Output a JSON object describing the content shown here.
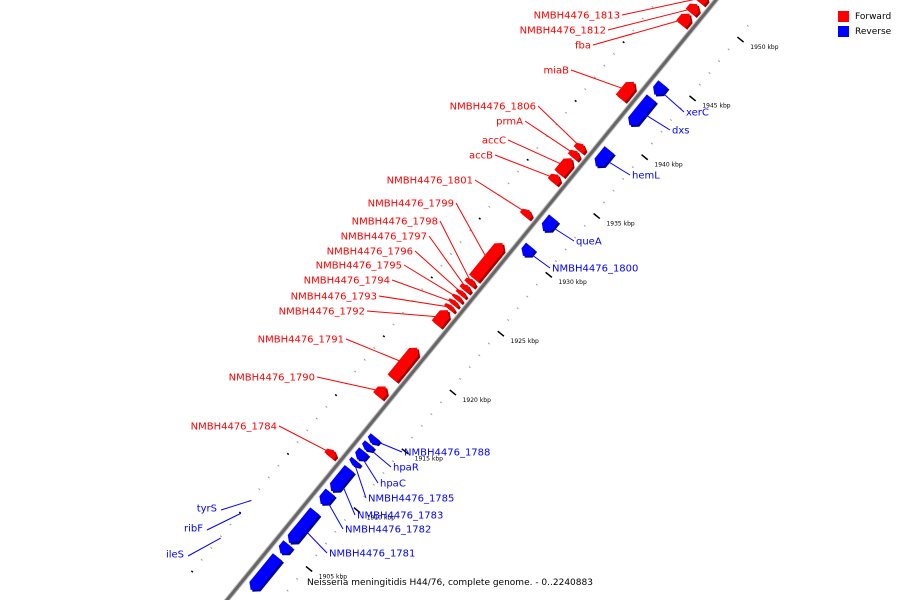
{
  "caption": "Neisseria meningitidis H44/76, complete genome. - 0..2240883",
  "legend": {
    "forward_label": "Forward",
    "reverse_label": "Reverse",
    "forward_color": "#ff0000",
    "reverse_color": "#0000ff"
  },
  "colors": {
    "forward": "#ff0000",
    "forward_dark": "#a00000",
    "reverse": "#0000ff",
    "reverse_dark": "#00009a",
    "backbone": "#666666",
    "ticks": "#000000"
  },
  "ticks": [
    {
      "label": "1905 kbp",
      "kbp": 1905
    },
    {
      "label": "1910 kbp",
      "kbp": 1910
    },
    {
      "label": "1915 kbp",
      "kbp": 1915
    },
    {
      "label": "1920 kbp",
      "kbp": 1920
    },
    {
      "label": "1925 kbp",
      "kbp": 1925
    },
    {
      "label": "1930 kbp",
      "kbp": 1930
    },
    {
      "label": "1935 kbp",
      "kbp": 1935
    },
    {
      "label": "1940 kbp",
      "kbp": 1940
    },
    {
      "label": "1945 kbp",
      "kbp": 1945
    },
    {
      "label": "1950 kbp",
      "kbp": 1950
    }
  ],
  "forward_genes": [
    {
      "name": "NMBH4476_1813",
      "start": 1950.2,
      "end": 1950.9
    },
    {
      "name": "NMBH4476_1812",
      "start": 1949.3,
      "end": 1950.0
    },
    {
      "name": "fba",
      "start": 1948.3,
      "end": 1949.2
    },
    {
      "name": "miaB",
      "start": 1942.0,
      "end": 1943.4
    },
    {
      "name": "NMBH4476_1806",
      "start": 1937.6,
      "end": 1938.1
    },
    {
      "name": "prmA",
      "start": 1937.0,
      "end": 1937.5
    },
    {
      "name": "accC",
      "start": 1935.6,
      "end": 1936.9
    },
    {
      "name": "accB",
      "start": 1934.9,
      "end": 1935.5
    },
    {
      "name": "NMBH4476_1801",
      "start": 1932.0,
      "end": 1932.5
    },
    {
      "name": "NMBH4476_1799",
      "start": 1926.7,
      "end": 1929.7
    },
    {
      "name": "NMBH4476_1798",
      "start": 1926.2,
      "end": 1926.6
    },
    {
      "name": "NMBH4476_1797",
      "start": 1925.7,
      "end": 1926.1
    },
    {
      "name": "NMBH4476_1796",
      "start": 1925.3,
      "end": 1925.6
    },
    {
      "name": "NMBH4476_1795",
      "start": 1924.9,
      "end": 1925.2
    },
    {
      "name": "NMBH4476_1794",
      "start": 1924.5,
      "end": 1924.8
    },
    {
      "name": "NMBH4476_1793",
      "start": 1924.1,
      "end": 1924.4
    },
    {
      "name": "NMBH4476_1792",
      "start": 1922.8,
      "end": 1924.0
    },
    {
      "name": "NMBH4476_1791",
      "start": 1918.2,
      "end": 1920.8
    },
    {
      "name": "NMBH4476_1790",
      "start": 1916.7,
      "end": 1917.5
    },
    {
      "name": "NMBH4476_1784",
      "start": 1911.6,
      "end": 1912.1
    }
  ],
  "reverse_genes": [
    {
      "name": "xerC",
      "start": 1943.6,
      "end": 1944.5
    },
    {
      "name": "dxs",
      "start": 1941.0,
      "end": 1943.3
    },
    {
      "name": "hemL",
      "start": 1937.5,
      "end": 1938.9
    },
    {
      "name": "queA",
      "start": 1932.0,
      "end": 1933.1
    },
    {
      "name": "NMBH4476_1800",
      "start": 1929.9,
      "end": 1930.7
    },
    {
      "name": "NMBH4476_1788",
      "start": 1914.0,
      "end": 1914.5
    },
    {
      "name": "hpaR",
      "start": 1913.4,
      "end": 1913.9
    },
    {
      "name": "hpaC",
      "start": 1912.6,
      "end": 1913.3
    },
    {
      "name": "NMBH4476_1785",
      "start": 1912.1,
      "end": 1912.5
    },
    {
      "name": "NMBH4476_1783",
      "start": 1909.9,
      "end": 1911.8
    },
    {
      "name": "NMBH4476_1782",
      "start": 1908.8,
      "end": 1909.8
    },
    {
      "name": "NMBH4476_1781",
      "start": 1905.5,
      "end": 1908.2
    },
    {
      "name": "ileS",
      "start": 1901.5,
      "end": 1904.3
    },
    {
      "name": "ribF",
      "start": 1904.6,
      "end": 1905.4
    },
    {
      "name": "tyrS",
      "start": 1905.6,
      "end": 1906.6
    }
  ]
}
